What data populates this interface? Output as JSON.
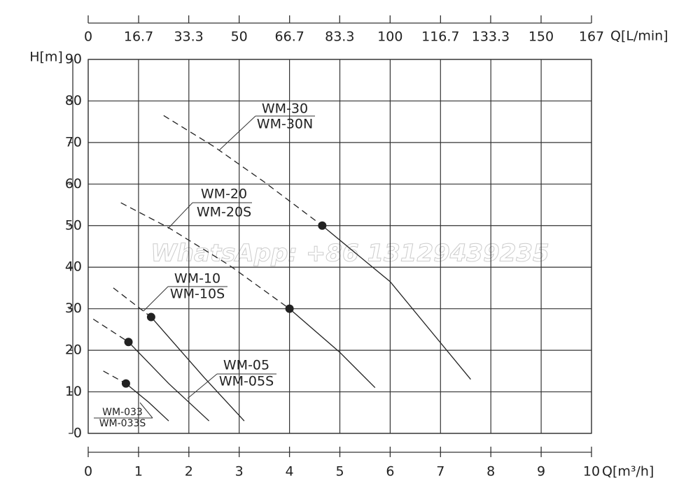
{
  "chart_data": {
    "type": "line",
    "watermark": "WhatsApp: +86 13129439235",
    "ylabel": "H[m]",
    "xlabel": "Q[m³/h]",
    "x2label": "Q[L/min]",
    "xlim": [
      0,
      10
    ],
    "xticks": [
      0,
      1,
      2,
      3,
      4,
      5,
      6,
      7,
      8,
      9,
      10
    ],
    "x2lim": [
      0,
      166.7
    ],
    "x2ticks": [
      0,
      16.7,
      33.3,
      50,
      66.7,
      83.3,
      100,
      116.7,
      133.3,
      150,
      {
        "value": 166.7,
        "label": "167"
      }
    ],
    "ylim": [
      0,
      90
    ],
    "yticks": [
      0,
      10,
      20,
      30,
      40,
      50,
      60,
      70,
      80,
      90
    ],
    "grid": true,
    "color": "#222222",
    "series": [
      {
        "labels": [
          "WM-30",
          "WM-30N"
        ],
        "x": [
          1.5,
          2.5,
          3.5,
          4.65,
          6,
          7.6
        ],
        "values": [
          76.5,
          69,
          60.5,
          50,
          36.5,
          13
        ],
        "marker_index": 3
      },
      {
        "labels": [
          "WM-20",
          "WM-20S"
        ],
        "x": [
          0.65,
          1.6,
          2.8,
          4,
          5,
          5.7
        ],
        "values": [
          55.5,
          49.5,
          40.5,
          30,
          19.5,
          11
        ],
        "marker_index": 3
      },
      {
        "labels": [
          "WM-10",
          "WM-10S"
        ],
        "x": [
          0.5,
          1.25,
          2.3,
          3.1
        ],
        "values": [
          35,
          28,
          13.5,
          3
        ],
        "marker_index": 1
      },
      {
        "labels": [
          "WM-05",
          "WM-05S"
        ],
        "x": [
          0.1,
          0.8,
          1.6,
          2.4
        ],
        "values": [
          27.5,
          22,
          12,
          3
        ],
        "marker_index": 1
      },
      {
        "labels": [
          "WM-033",
          "WM-033S"
        ],
        "x": [
          0.3,
          0.75,
          1.2,
          1.6
        ],
        "values": [
          15,
          12,
          7.5,
          3
        ],
        "marker_index": 1
      }
    ]
  }
}
